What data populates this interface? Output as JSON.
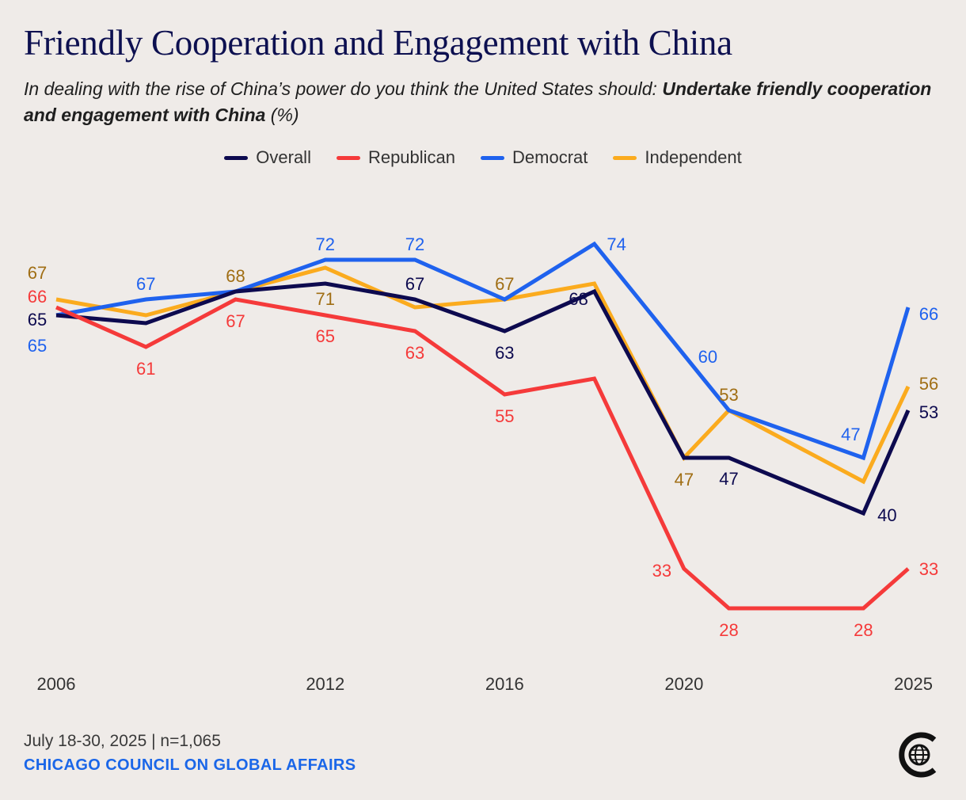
{
  "title": "Friendly Cooperation and Engagement with China",
  "subtitle": {
    "prefix": "In dealing with the rise of China’s power do you think the United States should: ",
    "emphasis": "Undertake friendly cooperation and engagement with China",
    "suffix": " (%)"
  },
  "footer": {
    "date_note": "July 18-30, 2025 | n=1,065",
    "organization": "CHICAGO COUNCIL ON GLOBAL AFFAIRS"
  },
  "logo_icon": "chicago-council-globe-logo",
  "colors": {
    "overall": "#0d0a4f",
    "republican": "#f53a3a",
    "democrat": "#1f62ee",
    "independent": "#fbab1e",
    "independent_label": "#a06e14"
  },
  "chart_data": {
    "type": "line",
    "title": "Friendly Cooperation and Engagement with China",
    "xlabel": "",
    "ylabel": "%",
    "x": [
      2006,
      2008,
      2010,
      2012,
      2014,
      2016,
      2018,
      2020,
      2021,
      2024,
      2025
    ],
    "x_tick_labels": [
      "2006",
      "2012",
      "2016",
      "2020",
      "2025"
    ],
    "x_tick_values": [
      2006,
      2012,
      2016,
      2020,
      2025
    ],
    "ylim": [
      20,
      80
    ],
    "grid": false,
    "legend_position": "top-center",
    "series": [
      {
        "name": "Overall",
        "key": "overall",
        "values": [
          65,
          64,
          68,
          69,
          67,
          63,
          68,
          47,
          47,
          40,
          53
        ],
        "labels": [
          "65",
          null,
          null,
          null,
          "67",
          "63",
          "68",
          null,
          "47",
          "40",
          "53"
        ]
      },
      {
        "name": "Republican",
        "key": "republican",
        "values": [
          66,
          61,
          67,
          65,
          63,
          55,
          57,
          33,
          28,
          28,
          33
        ],
        "labels": [
          "66",
          "61",
          "67",
          "65",
          "63",
          "55",
          null,
          "33",
          "28",
          "28",
          "33"
        ]
      },
      {
        "name": "Democrat",
        "key": "democrat",
        "values": [
          65,
          67,
          68,
          72,
          72,
          67,
          74,
          60,
          53,
          47,
          66
        ],
        "labels": [
          "65",
          "67",
          null,
          "72",
          "72",
          null,
          "74",
          "60",
          null,
          "47",
          "66"
        ]
      },
      {
        "name": "Independent",
        "key": "independent",
        "values": [
          67,
          65,
          68,
          71,
          66,
          67,
          69,
          47,
          53,
          44,
          56
        ],
        "labels": [
          "67",
          null,
          "68",
          "71",
          null,
          "67",
          null,
          "47",
          "53",
          null,
          "56"
        ]
      }
    ]
  }
}
